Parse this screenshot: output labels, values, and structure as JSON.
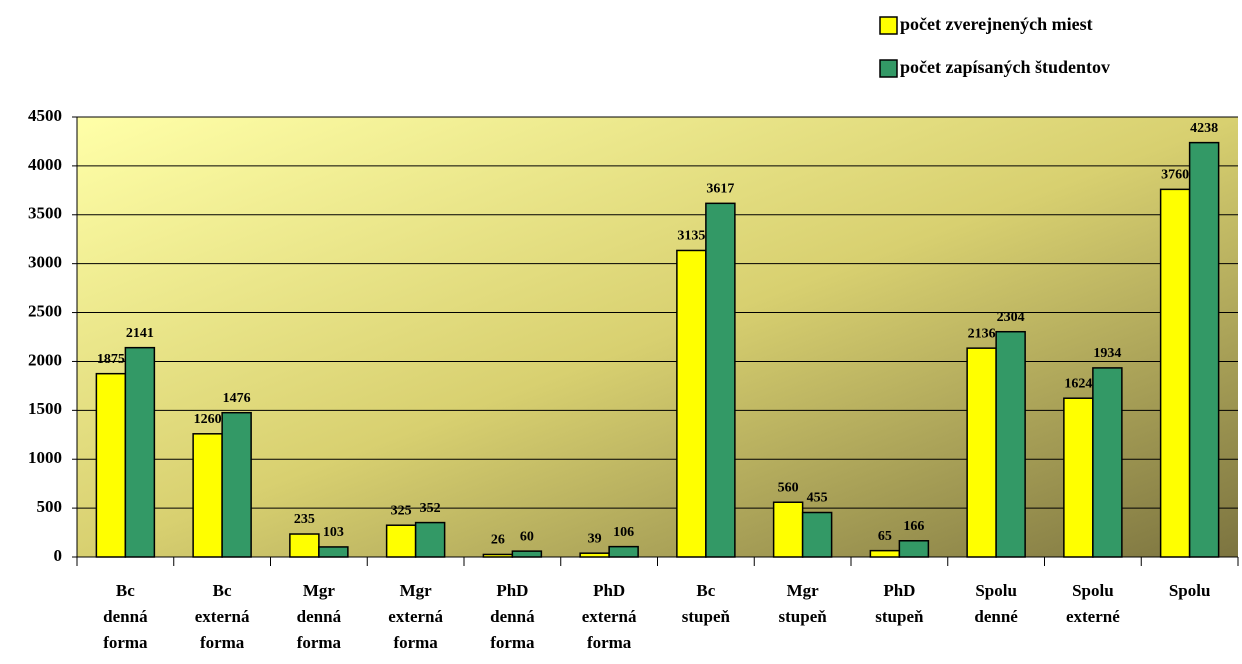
{
  "chart_data": {
    "type": "bar",
    "categories": [
      [
        "Bc",
        "denná",
        "forma"
      ],
      [
        "Bc",
        "externá",
        "forma"
      ],
      [
        "Mgr",
        "denná",
        "forma"
      ],
      [
        "Mgr",
        "externá",
        "forma"
      ],
      [
        "PhD",
        "denná",
        "forma"
      ],
      [
        "PhD",
        "externá",
        "forma"
      ],
      [
        "Bc",
        "stupeň"
      ],
      [
        "Mgr",
        "stupeň"
      ],
      [
        "PhD",
        "stupeň"
      ],
      [
        "Spolu",
        "denné"
      ],
      [
        "Spolu",
        "externé"
      ],
      [
        "Spolu"
      ]
    ],
    "series": [
      {
        "name": "počet zverejnených miest",
        "color": "#ffff00",
        "values": [
          1875,
          1260,
          235,
          325,
          26,
          39,
          3135,
          560,
          65,
          2136,
          1624,
          3760
        ]
      },
      {
        "name": "počet zapísaných študentov",
        "color": "#339966",
        "values": [
          2141,
          1476,
          103,
          352,
          60,
          106,
          3617,
          455,
          166,
          2304,
          1934,
          4238
        ]
      }
    ],
    "ylim": [
      0,
      4500
    ],
    "yticks": [
      0,
      500,
      1000,
      1500,
      2000,
      2500,
      3000,
      3500,
      4000,
      4500
    ],
    "grid": true,
    "legend": "top-right"
  }
}
